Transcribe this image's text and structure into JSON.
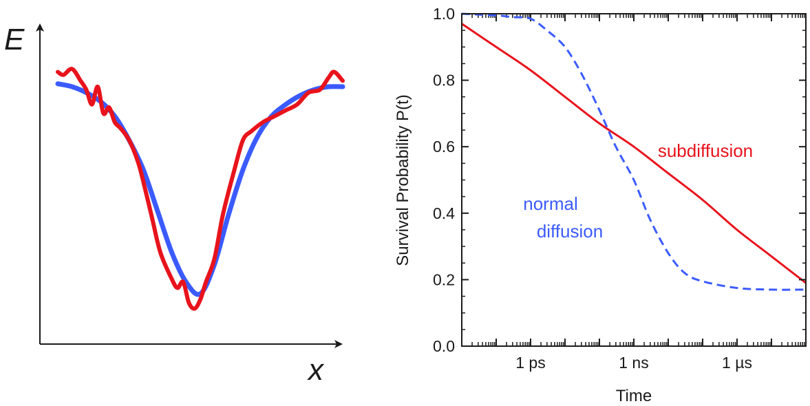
{
  "chart_data": [
    {
      "type": "line",
      "title": "",
      "xlabel": "x",
      "ylabel": "E",
      "xlim": [
        0,
        1
      ],
      "ylim": [
        0,
        1
      ],
      "grid": false,
      "series": [
        {
          "color": "#3b5bff",
          "x": [
            0.0,
            0.05,
            0.1,
            0.15,
            0.2,
            0.25,
            0.3,
            0.35,
            0.4,
            0.45,
            0.5,
            0.55,
            0.6,
            0.65,
            0.7,
            0.75,
            0.8,
            0.85,
            0.9,
            0.95,
            1.0
          ],
          "y": [
            0.81,
            0.8,
            0.78,
            0.75,
            0.7,
            0.62,
            0.52,
            0.38,
            0.24,
            0.14,
            0.1,
            0.2,
            0.37,
            0.52,
            0.63,
            0.7,
            0.74,
            0.77,
            0.79,
            0.8,
            0.8
          ]
        },
        {
          "color": "#e8131c",
          "x": [
            0.0,
            0.02,
            0.05,
            0.08,
            0.1,
            0.12,
            0.14,
            0.16,
            0.18,
            0.2,
            0.22,
            0.25,
            0.28,
            0.3,
            0.33,
            0.36,
            0.4,
            0.42,
            0.44,
            0.46,
            0.48,
            0.5,
            0.52,
            0.55,
            0.58,
            0.62,
            0.65,
            0.68,
            0.72,
            0.76,
            0.8,
            0.84,
            0.88,
            0.92,
            0.95,
            0.97,
            1.0
          ],
          "y": [
            0.85,
            0.84,
            0.86,
            0.82,
            0.79,
            0.74,
            0.8,
            0.71,
            0.73,
            0.68,
            0.66,
            0.62,
            0.55,
            0.48,
            0.36,
            0.24,
            0.15,
            0.12,
            0.14,
            0.07,
            0.05,
            0.08,
            0.14,
            0.22,
            0.37,
            0.52,
            0.62,
            0.65,
            0.68,
            0.7,
            0.72,
            0.74,
            0.78,
            0.79,
            0.83,
            0.85,
            0.82
          ]
        }
      ]
    },
    {
      "type": "line",
      "title": "",
      "xlabel": "Time",
      "ylabel": "Survival Probability P(t)",
      "x_scale": "log10",
      "x_unit": "seconds",
      "xlim": [
        1e-14,
        0.0001
      ],
      "ylim": [
        0.0,
        1.0
      ],
      "xticks": [
        {
          "value": 1e-12,
          "label": "1 ps"
        },
        {
          "value": 1e-09,
          "label": "1 ns"
        },
        {
          "value": 1e-06,
          "label": "1 µs"
        }
      ],
      "yticks": [
        "0.0",
        "0.2",
        "0.4",
        "0.6",
        "0.8",
        "1.0"
      ],
      "grid": false,
      "annotations": [
        {
          "text": "subdiffusion",
          "color": "#e8131c"
        },
        {
          "text": "normal",
          "color": "#3b5bff"
        },
        {
          "text": "diffusion",
          "color": "#3b5bff"
        }
      ],
      "series": [
        {
          "color": "#e8131c",
          "style": "solid",
          "x": [
            1e-14,
            1e-13,
            1e-12,
            1e-11,
            1e-10,
            1e-09,
            1e-08,
            1e-07,
            1e-06,
            1e-05,
            0.0001
          ],
          "y": [
            0.97,
            0.9,
            0.83,
            0.75,
            0.67,
            0.6,
            0.52,
            0.44,
            0.35,
            0.27,
            0.19
          ]
        },
        {
          "color": "#3b5bff",
          "style": "dashed",
          "x": [
            1e-14,
            1e-13,
            3e-13,
            1e-12,
            3e-12,
            1e-11,
            3e-11,
            1e-10,
            3e-10,
            1e-09,
            3e-09,
            1e-08,
            3e-08,
            1e-07,
            1e-06,
            1e-05,
            0.0001
          ],
          "y": [
            1.0,
            0.995,
            0.99,
            0.985,
            0.95,
            0.9,
            0.82,
            0.71,
            0.6,
            0.5,
            0.38,
            0.28,
            0.22,
            0.195,
            0.175,
            0.17,
            0.17
          ]
        }
      ]
    }
  ]
}
